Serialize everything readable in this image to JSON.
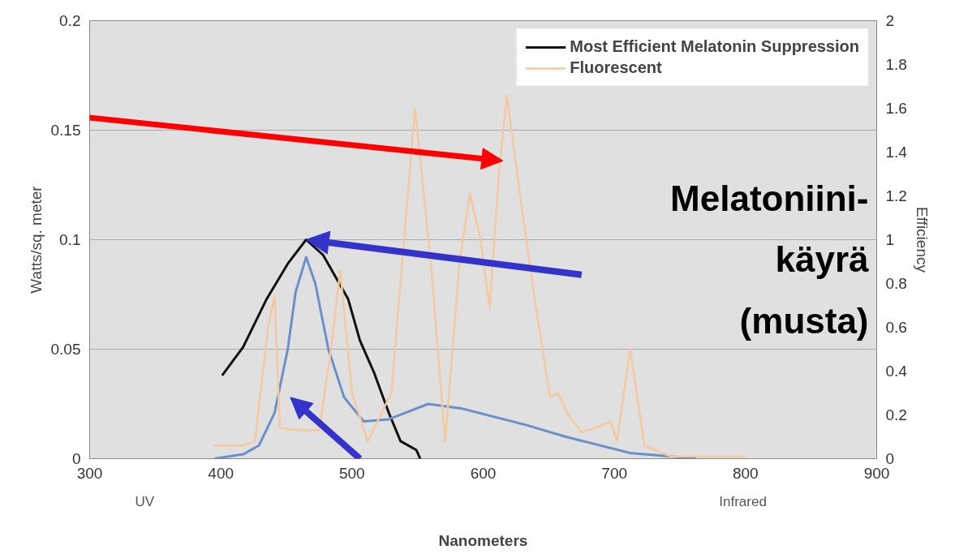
{
  "chart_data": {
    "type": "line",
    "xlabel": "Nanometers",
    "ylabel": "Watts/sq. meter",
    "y2label": "Efficiency",
    "xlim": [
      300,
      900
    ],
    "xticks": [
      300,
      400,
      500,
      600,
      700,
      800,
      900
    ],
    "ylim": [
      0,
      0.2
    ],
    "yticks": [
      0,
      0.05,
      0.1,
      0.15,
      0.2
    ],
    "y2lim": [
      0,
      2
    ],
    "y2ticks": [
      0,
      0.2,
      0.4,
      0.6,
      0.8,
      1,
      1.2,
      1.4,
      1.6,
      1.8,
      2
    ],
    "grid": "y",
    "legend": "top right",
    "line_style": "solid",
    "series": [
      {
        "name": "Most Efficient Melatonin Suppression",
        "color": "#111111",
        "axis": "y2",
        "x": [
          401,
          417,
          435,
          451,
          465,
          478,
          497,
          506,
          517,
          528,
          537,
          549,
          552
        ],
        "values": [
          0.38,
          0.51,
          0.73,
          0.89,
          1.0,
          0.93,
          0.73,
          0.54,
          0.39,
          0.21,
          0.08,
          0.04,
          0
        ]
      },
      {
        "color": "#6b8fc9",
        "x": [
          395,
          417,
          429,
          441,
          451,
          457,
          465,
          472,
          482,
          494,
          509,
          528,
          558,
          583,
          632,
          663,
          712,
          743,
          762
        ],
        "values": [
          0,
          0.002,
          0.006,
          0.021,
          0.05,
          0.076,
          0.092,
          0.08,
          0.05,
          0.028,
          0.017,
          0.018,
          0.025,
          0.023,
          0.0155,
          0.01,
          0.0026,
          0.001,
          0
        ]
      },
      {
        "name": "Fluorescent",
        "color": "#f5c9a0",
        "x": [
          395,
          417,
          426,
          436,
          441,
          445,
          460,
          475,
          484,
          491,
          500,
          512,
          530,
          548,
          560,
          571,
          582,
          590,
          598,
          605,
          612,
          618,
          628,
          640,
          651,
          657,
          665,
          675,
          690,
          697,
          702,
          712,
          723,
          743,
          800
        ],
        "values": [
          0.006,
          0.006,
          0.008,
          0.06,
          0.074,
          0.014,
          0.013,
          0.013,
          0.05,
          0.086,
          0.03,
          0.008,
          0.03,
          0.16,
          0.09,
          0.008,
          0.09,
          0.121,
          0.1,
          0.069,
          0.13,
          0.166,
          0.121,
          0.07,
          0.028,
          0.03,
          0.02,
          0.012,
          0.015,
          0.017,
          0.008,
          0.05,
          0.006,
          0.001,
          0.001
        ]
      }
    ],
    "annotations": [
      "Melatoniini-käyrä (musta)",
      "UV",
      "Infrared"
    ]
  }
}
